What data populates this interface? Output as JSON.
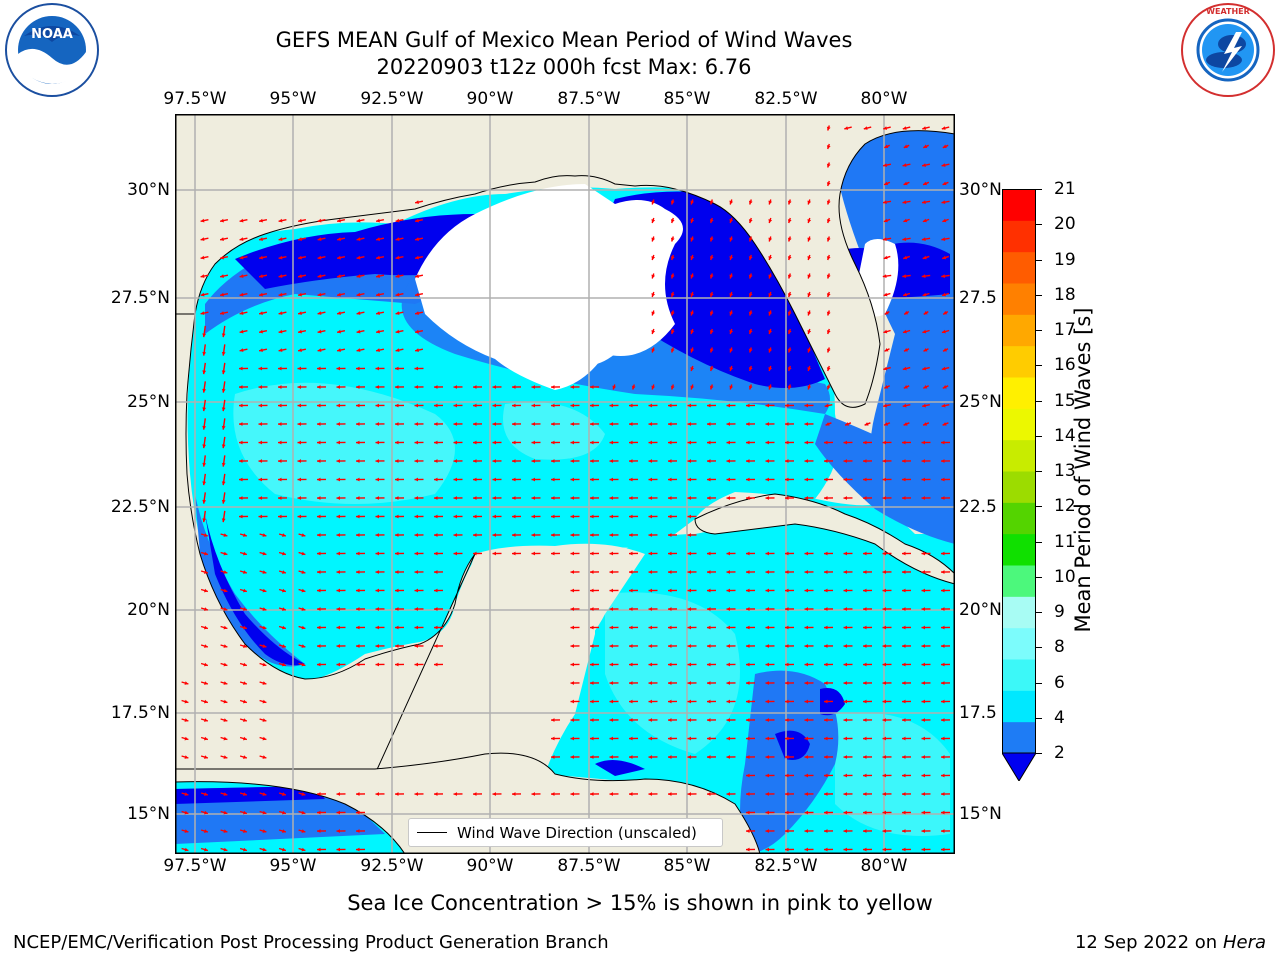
{
  "header": {
    "title_line1": "GEFS MEAN Gulf of Mexico Mean Period of Wind Waves",
    "title_line2": "20220903 t12z 000h fcst   Max: 6.76"
  },
  "logos": {
    "left": "NOAA",
    "right": "NATIONAL WEATHER SERVICE"
  },
  "map": {
    "lon_labels": [
      "97.5°W",
      "95°W",
      "92.5°W",
      "90°W",
      "87.5°W",
      "85°W",
      "82.5°W",
      "80°W"
    ],
    "lat_labels": [
      "30°N",
      "27.5°N",
      "25°N",
      "22.5°N",
      "20°N",
      "17.5°N",
      "15°N"
    ],
    "right_lat_labels": [
      "30°N",
      "27.5",
      "25°N",
      "22.5",
      "20°N",
      "17.5",
      "15°N"
    ],
    "legend_label": "Wind Wave Direction (unscaled)",
    "colors": {
      "land": "#efedde",
      "deep_blue": "#0000ee",
      "mid_blue": "#1f78f5",
      "cyan": "#00f6ff",
      "light_cyan": "#56f8fa",
      "arrow": "#ff0000"
    }
  },
  "colorbar": {
    "label": "Mean Period of Wind Waves [s]",
    "ticks": [
      "21",
      "20",
      "19",
      "18",
      "17",
      "16",
      "15",
      "14",
      "13",
      "12",
      "11",
      "10",
      "9",
      "8",
      "6",
      "4",
      "2"
    ],
    "colors": [
      "#0000f0",
      "#1e7cf5",
      "#00e8ff",
      "#3cf8f8",
      "#7cfcfc",
      "#a8fcf4",
      "#4cf87c",
      "#10e000",
      "#54d400",
      "#9cdc00",
      "#c8ec00",
      "#ecf800",
      "#fff000",
      "#ffcc00",
      "#ffa800",
      "#ff8000",
      "#ff5c00",
      "#ff3000",
      "#ff0000"
    ]
  },
  "footer": {
    "note": "Sea Ice Concentration > 15% is shown in pink to yellow",
    "left": "NCEP/EMC/Verification Post Processing Product Generation Branch",
    "right_date": "12 Sep 2022 on",
    "right_host": "Hera"
  }
}
